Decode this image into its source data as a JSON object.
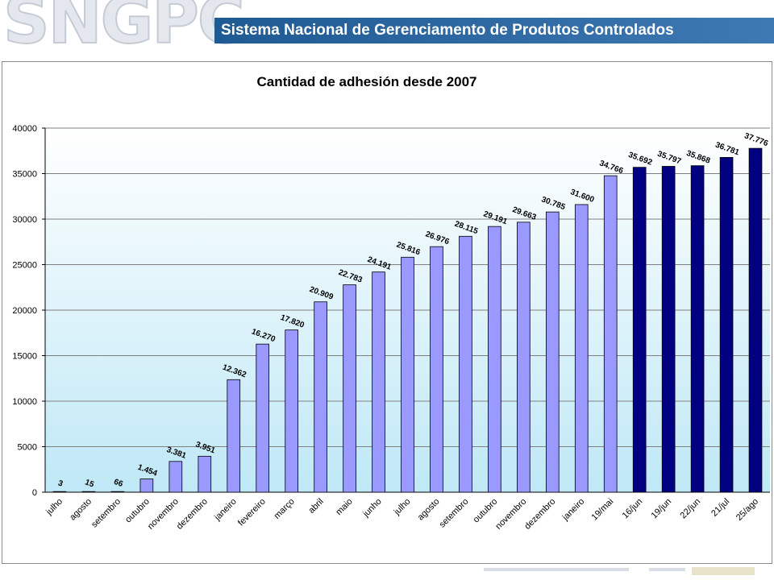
{
  "header": {
    "logo_text": "SNGPC",
    "banner_title": "Sistema Nacional de Gerenciamento de Produtos Controlados"
  },
  "colors": {
    "bar_light": "#9999ff",
    "bar_dark": "#000080",
    "plot_top": "#ffffff",
    "plot_bottom": "#bfe8f6",
    "grid": "#808080",
    "banner": "#2a67a3"
  },
  "chart_data": {
    "type": "bar",
    "title": "Cantidad de adhesión desde 2007",
    "xlabel": "",
    "ylabel": "",
    "ylim": [
      0,
      40000
    ],
    "yticks": [
      0,
      5000,
      10000,
      15000,
      20000,
      25000,
      30000,
      35000,
      40000
    ],
    "grid": true,
    "categories": [
      "julho",
      "agosto",
      "setembro",
      "outubro",
      "novembro",
      "dezembro",
      "janeiro",
      "fevereiro",
      "março",
      "abril",
      "maio",
      "junho",
      "julho",
      "agosto",
      "setembro",
      "outubro",
      "novembro",
      "dezembro",
      "janeiro",
      "19/mai",
      "16/jun",
      "19/jun",
      "22/jun",
      "21/jul",
      "25/ago"
    ],
    "values": [
      3,
      15,
      66,
      1454,
      3381,
      3951,
      12362,
      16270,
      17820,
      20909,
      22783,
      24191,
      25816,
      26976,
      28115,
      29191,
      29663,
      30785,
      31600,
      34766,
      35692,
      35797,
      35868,
      36781,
      37776
    ],
    "data_labels": [
      "3",
      "15",
      "66",
      "1.454",
      "3.381",
      "3.951",
      "12.362",
      "16.270",
      "17.820",
      "20.909",
      "22.783",
      "24.191",
      "25.816",
      "26.976",
      "28.115",
      "29.191",
      "29.663",
      "30.785",
      "31.600",
      "34.766",
      "35.692",
      "35.797",
      "35.868",
      "36.781",
      "37.776"
    ],
    "highlight_from_index": 20
  }
}
